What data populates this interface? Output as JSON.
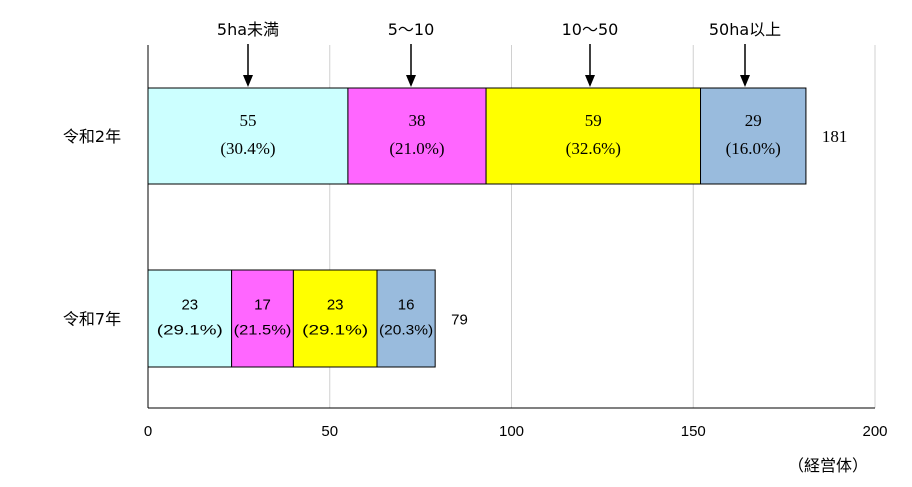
{
  "chart_data": {
    "type": "bar",
    "orientation": "horizontal",
    "stacked": true,
    "categories": [
      "令和2年",
      "令和7年"
    ],
    "series": [
      {
        "name": "5ha未満",
        "color": "#ccffff",
        "values": [
          55,
          23
        ],
        "percents": [
          "(30.4%)",
          "(29.1%)"
        ]
      },
      {
        "name": "5～10",
        "color": "#ff66ff",
        "values": [
          38,
          17
        ],
        "percents": [
          "(21.0%)",
          "(21.5%)"
        ]
      },
      {
        "name": "10～50",
        "color": "#ffff00",
        "values": [
          59,
          23
        ],
        "percents": [
          "(32.6%)",
          "(29.1%)"
        ]
      },
      {
        "name": "50ha以上",
        "color": "#99bbdd",
        "values": [
          29,
          16
        ],
        "percents": [
          "(16.0%)",
          "(20.3%)"
        ]
      }
    ],
    "totals": [
      181,
      79
    ],
    "xlim": [
      0,
      200
    ],
    "xticks": [
      0,
      50,
      100,
      150,
      200
    ],
    "unit_label": "（経営体）",
    "grid": true,
    "legend": "arrows above top bar"
  }
}
